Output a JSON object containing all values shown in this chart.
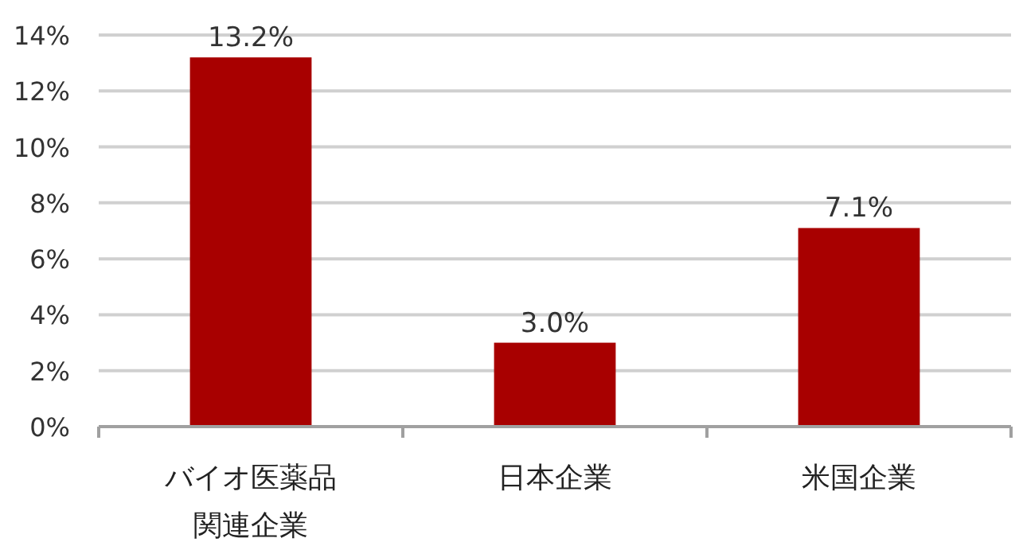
{
  "chart_data": {
    "type": "bar",
    "categories": [
      "バイオ医薬品関連企業",
      "日本企業",
      "米国企業"
    ],
    "values": [
      13.2,
      3.0,
      7.1
    ],
    "value_labels": [
      "13.2%",
      "3.0%",
      "7.1%"
    ],
    "color": "#a80000",
    "ylim": [
      0,
      14
    ],
    "yticks": [
      {
        "value": 0,
        "label": "0%"
      },
      {
        "value": 2,
        "label": "2%"
      },
      {
        "value": 4,
        "label": "4%"
      },
      {
        "value": 6,
        "label": "6%"
      },
      {
        "value": 8,
        "label": "8%"
      },
      {
        "value": 10,
        "label": "10%"
      },
      {
        "value": 12,
        "label": "12%"
      },
      {
        "value": 14,
        "label": "14%"
      }
    ],
    "grid": "y"
  }
}
